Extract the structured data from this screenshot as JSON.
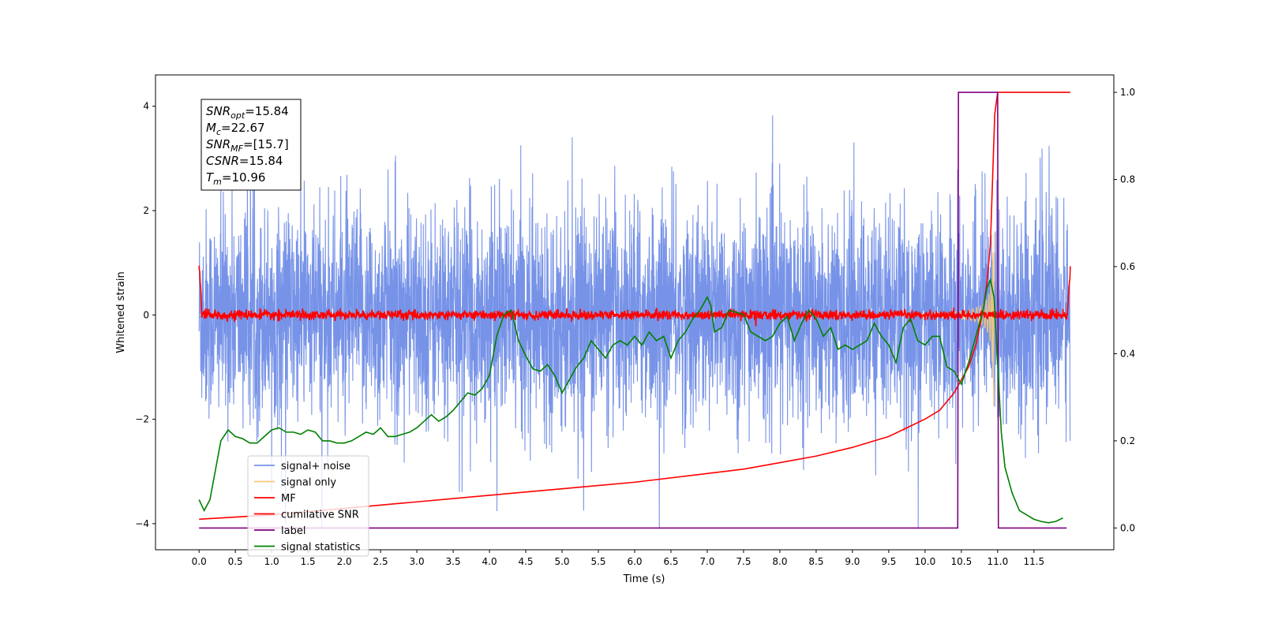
{
  "chart_data": {
    "type": "line",
    "xlabel": "Time (s)",
    "ylabel_left": "Whitened strain",
    "xlim": [
      -0.6,
      12.6
    ],
    "ylim_left": [
      -4.5,
      4.6
    ],
    "ylim_right": [
      -0.05,
      1.04
    ],
    "x_ticks": [
      0.0,
      0.5,
      1.0,
      1.5,
      2.0,
      2.5,
      3.0,
      3.5,
      4.0,
      4.5,
      5.0,
      5.5,
      6.0,
      6.5,
      7.0,
      7.5,
      8.0,
      8.5,
      9.0,
      9.5,
      10.0,
      10.5,
      11.0,
      11.5
    ],
    "x_tick_labels": [
      "0.0",
      "0.5",
      "1.0",
      "1.5",
      "2.0",
      "2.5",
      "3.0",
      "3.5",
      "4.0",
      "4.5",
      "5.0",
      "5.5",
      "6.0",
      "6.5",
      "7.0",
      "7.5",
      "8.0",
      "8.5",
      "9.0",
      "9.5",
      "10.0",
      "10.5",
      "11.0",
      "11.5"
    ],
    "y_left_ticks": [
      -4,
      -2,
      0,
      2,
      4
    ],
    "y_left_tick_labels": [
      "−4",
      "−2",
      "0",
      "2",
      "4"
    ],
    "y_right_ticks": [
      0.0,
      0.2,
      0.4,
      0.6,
      0.8,
      1.0
    ],
    "y_right_tick_labels": [
      "0.0",
      "0.2",
      "0.4",
      "0.6",
      "0.8",
      "1.0"
    ],
    "series": [
      {
        "name": "signal+ noise",
        "color": "#7793e8",
        "axis": "left",
        "description_kind": "noise",
        "x_range": [
          0.0,
          12.0
        ],
        "amplitude_envelope": [
          -2.6,
          2.6
        ]
      },
      {
        "name": "signal only",
        "color": "#f5c97a",
        "axis": "left",
        "description_kind": "chirp",
        "x_range": [
          0.0,
          10.96
        ]
      },
      {
        "name": "MF",
        "color": "#ff0000",
        "axis": "left",
        "description_kind": "mf",
        "x_range": [
          0.0,
          12.0
        ],
        "start_value": 1.0,
        "end_value": 0.9
      },
      {
        "name": "cumilative SNR",
        "color": "#ff0000",
        "axis": "right",
        "x": [
          0.0,
          1.0,
          2.0,
          3.0,
          4.0,
          5.0,
          6.0,
          7.0,
          7.5,
          8.0,
          8.5,
          9.0,
          9.5,
          10.0,
          10.2,
          10.4,
          10.6,
          10.7,
          10.8,
          10.85,
          10.9,
          10.93,
          10.96,
          11.0,
          12.0
        ],
        "y": [
          0.02,
          0.03,
          0.045,
          0.06,
          0.075,
          0.09,
          0.105,
          0.125,
          0.135,
          0.15,
          0.165,
          0.185,
          0.21,
          0.25,
          0.27,
          0.31,
          0.37,
          0.42,
          0.5,
          0.56,
          0.65,
          0.8,
          0.95,
          1.0,
          1.0
        ]
      },
      {
        "name": "label",
        "color": "#800080",
        "axis": "right",
        "x": [
          0.0,
          10.45,
          10.46,
          10.9,
          10.91,
          11.0,
          11.01,
          11.95
        ],
        "y": [
          0.0,
          0.0,
          1.0,
          1.0,
          1.0,
          1.0,
          0.0,
          0.0
        ]
      },
      {
        "name": "signal statistics",
        "color": "#008000",
        "axis": "right",
        "x": [
          0.0,
          0.07,
          0.15,
          0.2,
          0.3,
          0.4,
          0.5,
          0.6,
          0.7,
          0.8,
          0.9,
          1.0,
          1.1,
          1.2,
          1.3,
          1.4,
          1.5,
          1.6,
          1.7,
          1.8,
          1.9,
          2.0,
          2.1,
          2.2,
          2.3,
          2.4,
          2.5,
          2.6,
          2.7,
          2.8,
          2.9,
          3.0,
          3.1,
          3.2,
          3.3,
          3.4,
          3.5,
          3.6,
          3.7,
          3.8,
          3.9,
          4.0,
          4.1,
          4.2,
          4.3,
          4.4,
          4.5,
          4.6,
          4.7,
          4.8,
          4.9,
          5.0,
          5.1,
          5.2,
          5.3,
          5.4,
          5.5,
          5.6,
          5.7,
          5.8,
          5.9,
          6.0,
          6.1,
          6.2,
          6.3,
          6.4,
          6.5,
          6.6,
          6.7,
          6.8,
          6.9,
          7.0,
          7.05,
          7.1,
          7.2,
          7.3,
          7.4,
          7.5,
          7.6,
          7.7,
          7.8,
          7.9,
          8.0,
          8.1,
          8.2,
          8.3,
          8.4,
          8.5,
          8.6,
          8.7,
          8.8,
          8.9,
          9.0,
          9.1,
          9.2,
          9.3,
          9.4,
          9.5,
          9.6,
          9.7,
          9.8,
          9.9,
          10.0,
          10.1,
          10.2,
          10.3,
          10.4,
          10.5,
          10.6,
          10.7,
          10.8,
          10.85,
          10.9,
          10.95,
          11.0,
          11.05,
          11.1,
          11.2,
          11.3,
          11.4,
          11.5,
          11.6,
          11.7,
          11.8,
          11.9
        ],
        "y": [
          0.065,
          0.04,
          0.065,
          0.11,
          0.2,
          0.225,
          0.21,
          0.205,
          0.195,
          0.195,
          0.21,
          0.225,
          0.23,
          0.22,
          0.22,
          0.215,
          0.225,
          0.22,
          0.2,
          0.2,
          0.195,
          0.195,
          0.2,
          0.21,
          0.22,
          0.215,
          0.23,
          0.21,
          0.21,
          0.215,
          0.22,
          0.23,
          0.245,
          0.26,
          0.245,
          0.255,
          0.27,
          0.29,
          0.31,
          0.305,
          0.32,
          0.35,
          0.44,
          0.49,
          0.5,
          0.43,
          0.395,
          0.365,
          0.36,
          0.375,
          0.35,
          0.31,
          0.34,
          0.37,
          0.39,
          0.43,
          0.41,
          0.39,
          0.42,
          0.43,
          0.42,
          0.44,
          0.42,
          0.45,
          0.43,
          0.44,
          0.39,
          0.43,
          0.45,
          0.48,
          0.5,
          0.53,
          0.51,
          0.45,
          0.46,
          0.5,
          0.495,
          0.49,
          0.45,
          0.44,
          0.43,
          0.44,
          0.47,
          0.485,
          0.43,
          0.47,
          0.5,
          0.48,
          0.44,
          0.46,
          0.41,
          0.42,
          0.41,
          0.42,
          0.43,
          0.47,
          0.44,
          0.42,
          0.38,
          0.46,
          0.48,
          0.43,
          0.42,
          0.44,
          0.44,
          0.37,
          0.36,
          0.33,
          0.38,
          0.44,
          0.5,
          0.55,
          0.57,
          0.53,
          0.38,
          0.22,
          0.14,
          0.08,
          0.04,
          0.03,
          0.02,
          0.015,
          0.012,
          0.015,
          0.023
        ]
      }
    ],
    "legend": {
      "placement": "lower-left",
      "entries": [
        {
          "name": "signal+ noise",
          "color": "#7793e8"
        },
        {
          "name": "signal only",
          "color": "#f5c97a"
        },
        {
          "name": "MF",
          "color": "#ff0000"
        },
        {
          "name": "cumilative SNR",
          "color": "#ff0000"
        },
        {
          "name": "label",
          "color": "#800080"
        },
        {
          "name": "signal statistics",
          "color": "#008000"
        }
      ]
    },
    "annotation": {
      "placement": "top-left",
      "lines": [
        {
          "main": "SNR",
          "sub": "opt",
          "rest": "=15.84"
        },
        {
          "main": "M",
          "sub": "c",
          "rest": "=22.67"
        },
        {
          "main": "SNR",
          "sub": "MF",
          "rest": "=[15.7]"
        },
        {
          "main": "CSNR",
          "sub": "",
          "rest": "=15.84"
        },
        {
          "main": "T",
          "sub": "m",
          "rest": "=10.96"
        }
      ]
    }
  }
}
